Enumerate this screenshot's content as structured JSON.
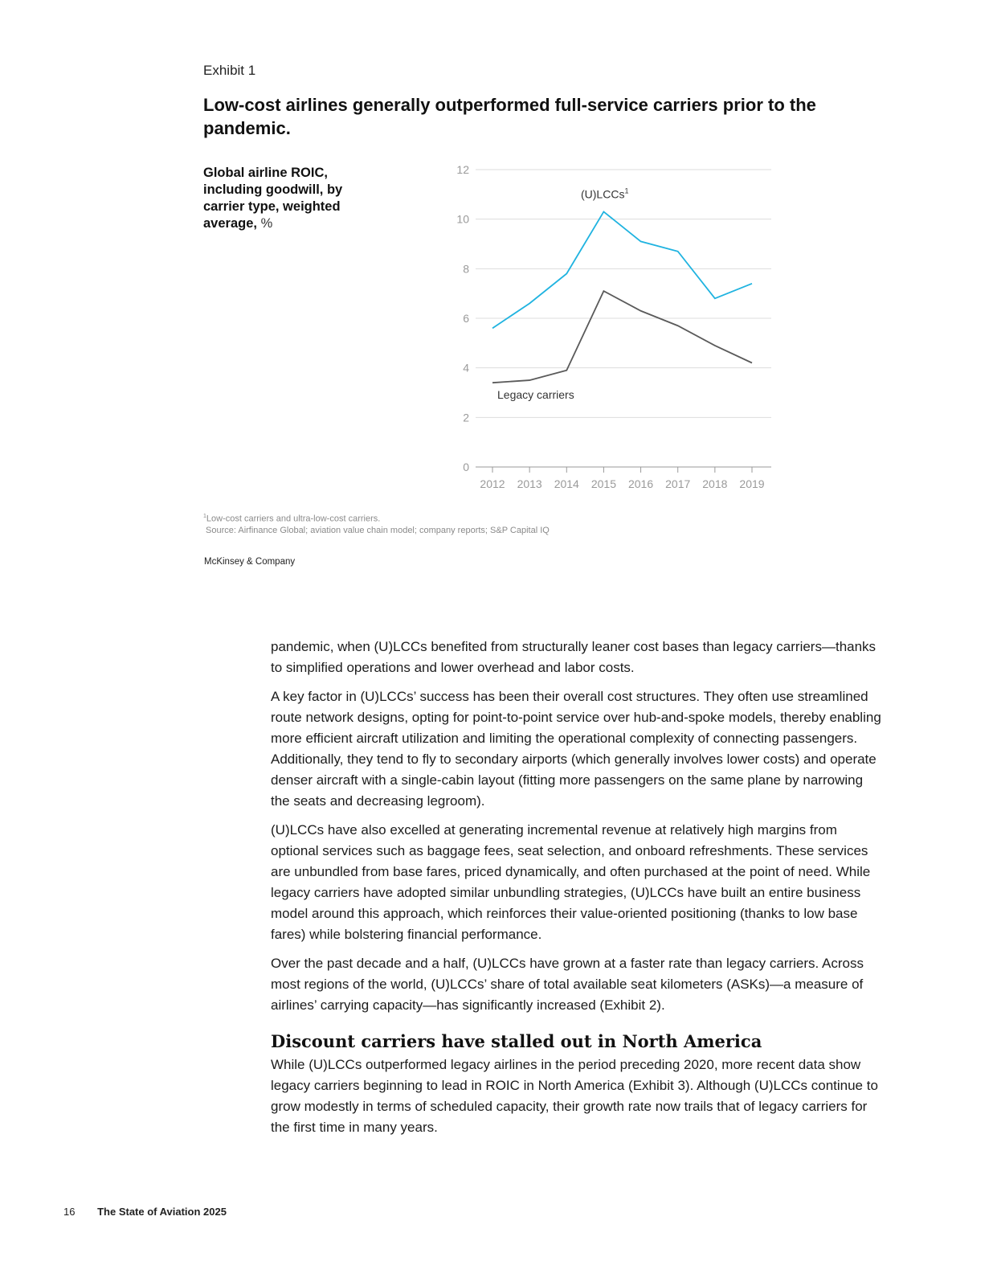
{
  "exhibit": {
    "label": "Exhibit 1",
    "title": "Low-cost airlines generally outperformed full-service carriers prior to the pandemic.",
    "caption_bold": "Global airline ROIC, including goodwill, by carrier type, weighted average,",
    "caption_unit": "%"
  },
  "chart_data": {
    "type": "line",
    "title": "Global airline ROIC, including goodwill, by carrier type, weighted average, %",
    "xlabel": "",
    "ylabel": "%",
    "categories": [
      "2012",
      "2013",
      "2014",
      "2015",
      "2016",
      "2017",
      "2018",
      "2019"
    ],
    "ylim": [
      0,
      12
    ],
    "yticks": [
      0,
      2,
      4,
      6,
      8,
      10,
      12
    ],
    "grid": true,
    "series": [
      {
        "name": "(U)LCCs",
        "label_text": "(U)LCCs",
        "label_sup": "1",
        "color": "#1fb3e0",
        "values": [
          5.6,
          6.6,
          7.8,
          10.3,
          9.1,
          8.7,
          6.8,
          7.4
        ]
      },
      {
        "name": "Legacy carriers",
        "label_text": "Legacy carriers",
        "label_sup": "",
        "color": "#5a5a5a",
        "values": [
          3.4,
          3.5,
          3.9,
          7.1,
          6.3,
          5.7,
          4.9,
          4.2
        ]
      }
    ]
  },
  "footnotes": {
    "note_mark": "1",
    "note_text": "Low-cost carriers and ultra-low-cost carriers.",
    "source": "Source: Airfinance Global; aviation value chain model; company reports; S&P Capital IQ"
  },
  "publisher": "McKinsey & Company",
  "body": {
    "p1": "pandemic, when (U)LCCs benefited from structurally leaner cost bases than legacy carriers—thanks to simplified operations and lower overhead and labor costs.",
    "p2": "A key factor in (U)LCCs’ success has been their overall cost structures. They often use streamlined route network designs, opting for point-to-point service over hub-and-spoke models, thereby enabling more efficient aircraft utilization and limiting the operational complexity of connecting passengers. Additionally, they tend to fly to secondary airports (which generally involves lower costs) and operate denser aircraft with a single-cabin layout (fitting more passengers on the same plane by narrowing the seats and decreasing legroom).",
    "p3": "(U)LCCs have also excelled at generating incremental revenue at relatively high margins from optional services such as baggage fees, seat selection, and onboard refreshments. These services are unbundled from base fares, priced dynamically, and often purchased at the point of need. While legacy carriers have adopted similar unbundling strategies, (U)LCCs have built an entire business model around this approach, which reinforces their value-oriented positioning (thanks to low base fares) while bolstering financial performance.",
    "p4": "Over the past decade and a half, (U)LCCs have grown at a faster rate than legacy carriers. Across most regions of the world, (U)LCCs’ share of total available seat kilometers (ASKs)—a measure of airlines’ carrying capacity—has significantly increased (Exhibit 2).",
    "heading": "Discount carriers have stalled out in North America",
    "p5": "While (U)LCCs outperformed legacy airlines in the period preceding 2020, more recent data show legacy carriers beginning to lead in ROIC in North America (Exhibit 3). Although (U)LCCs continue to grow modestly in terms of scheduled capacity, their growth rate now trails that of legacy carriers for the first time in many years."
  },
  "footer": {
    "page_number": "16",
    "report_title": "The State of Aviation 2025"
  }
}
